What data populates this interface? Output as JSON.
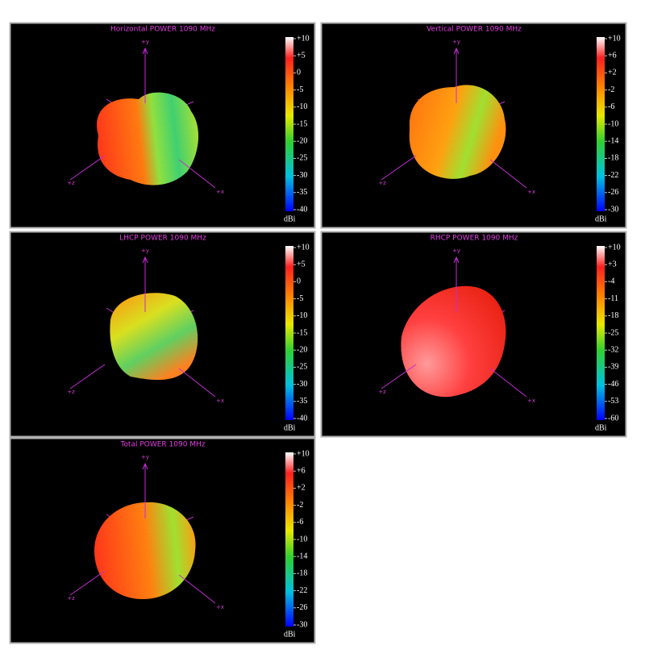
{
  "panels": [
    {
      "title": "Horizontal POWER 1090  MHz",
      "axes": [
        "+y",
        "+z",
        "+x"
      ],
      "scale": [
        "+10",
        "+5",
        "0",
        "-5",
        "-10",
        "-15",
        "-20",
        "-25",
        "-30",
        "-35",
        "-40"
      ],
      "unit": "dBi"
    },
    {
      "title": "Vertical POWER 1090  MHz",
      "axes": [
        "+y",
        "+z",
        "+x"
      ],
      "scale": [
        "+10",
        "+6",
        "+2",
        "-2",
        "-6",
        "-10",
        "-14",
        "-18",
        "-22",
        "-26",
        "-30"
      ],
      "unit": "dBi"
    },
    {
      "title": "LHCP POWER 1090  MHz",
      "axes": [
        "+y",
        "+z",
        "+x"
      ],
      "scale": [
        "+10",
        "+5",
        "0",
        "-5",
        "-10",
        "-15",
        "-20",
        "-25",
        "-30",
        "-35",
        "-40"
      ],
      "unit": "dBi"
    },
    {
      "title": "RHCP POWER 1090  MHz",
      "axes": [
        "+y",
        "+z",
        "+x"
      ],
      "scale": [
        "+10",
        "+3",
        "-4",
        "-11",
        "-18",
        "-25",
        "-32",
        "-39",
        "-46",
        "-53",
        "-60"
      ],
      "unit": "dBi"
    },
    {
      "title": "Total POWER 1090  MHz",
      "axes": [
        "+y",
        "+z",
        "+x"
      ],
      "scale": [
        "+10",
        "+6",
        "+2",
        "-2",
        "-6",
        "-10",
        "-14",
        "-18",
        "-22",
        "-26",
        "-30"
      ],
      "unit": "dBi"
    }
  ]
}
